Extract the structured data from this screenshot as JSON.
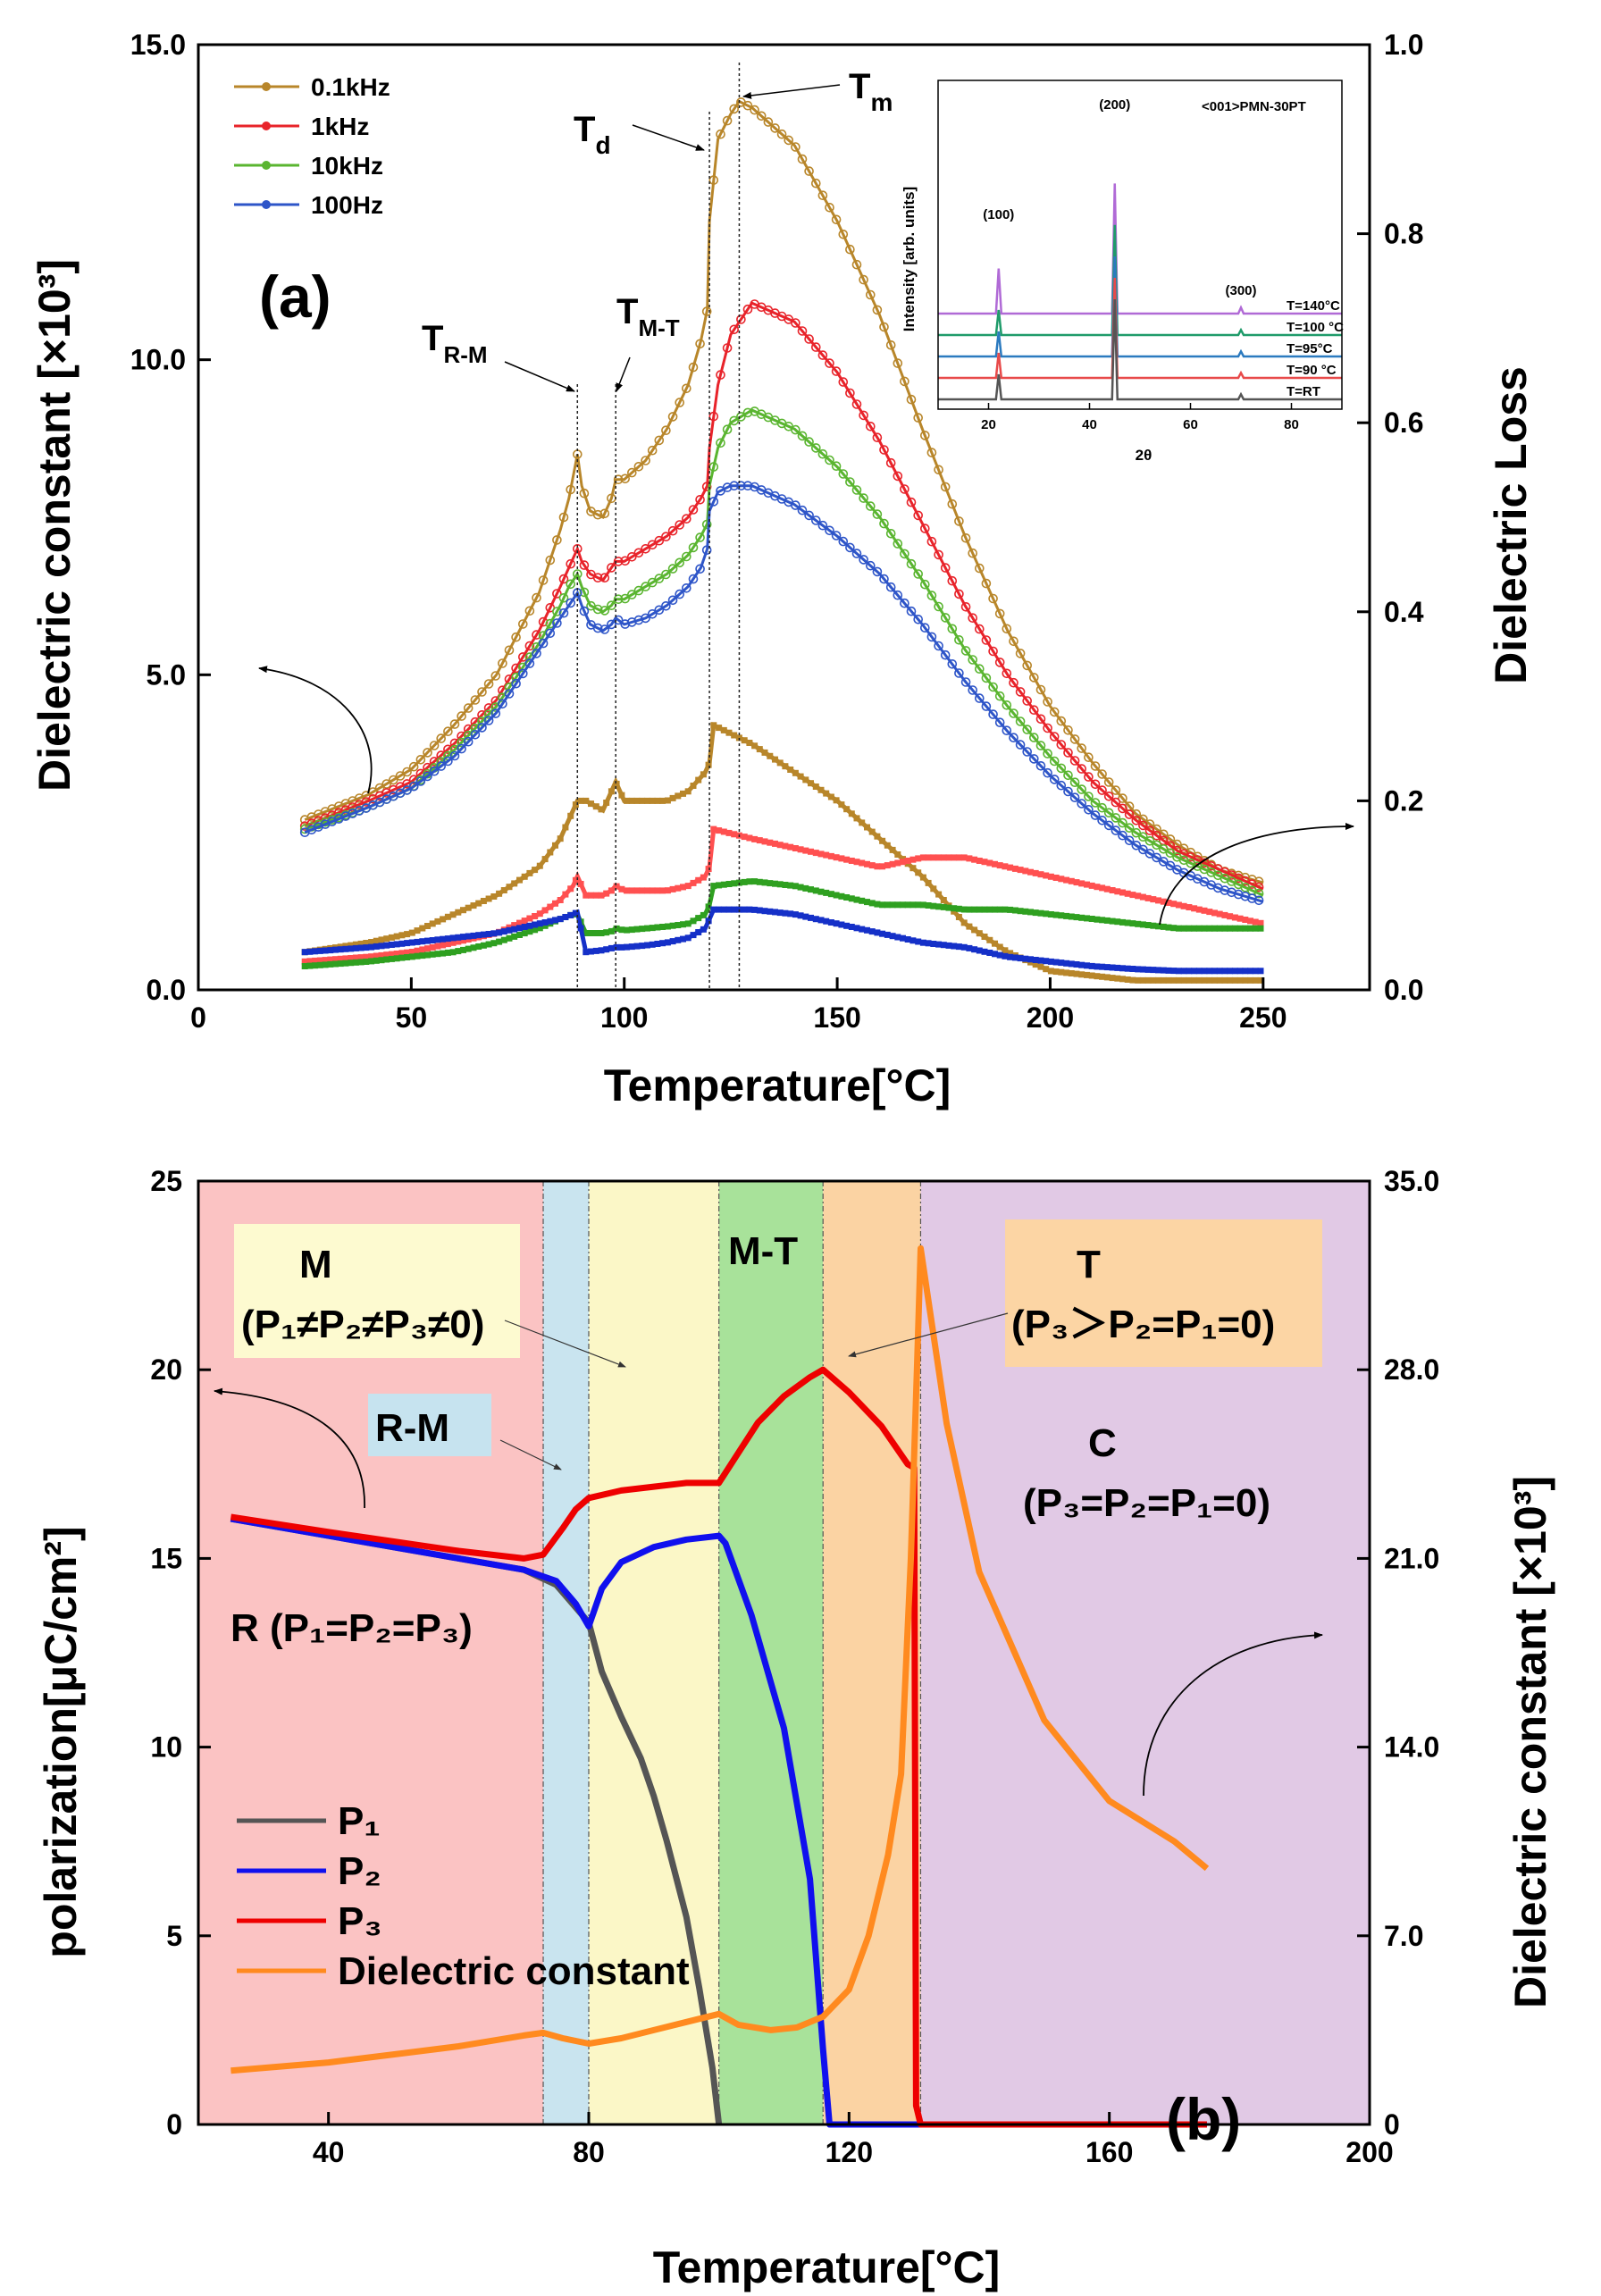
{
  "chart_data": [
    {
      "panel_label": "(a)",
      "type": "scatter",
      "xlabel": "Temperature[°C]",
      "ylabel": "Dielectric constant [×10³]",
      "y2label": "Dielectric Loss",
      "xlim": [
        0,
        275
      ],
      "ylim": [
        0,
        15
      ],
      "y2lim": [
        0,
        1
      ],
      "xticks": [
        "0",
        "50",
        "100",
        "150",
        "200",
        "250"
      ],
      "yticks": [
        "0.0",
        "5.0",
        "10.0",
        "15.0"
      ],
      "y2ticks": [
        "0.0",
        "0.2",
        "0.4",
        "0.6",
        "0.8",
        "1.0"
      ],
      "legend_position": "top-left",
      "annotations": {
        "Tm": {
          "main": "T",
          "sub": "m"
        },
        "Td": {
          "main": "T",
          "sub": "d"
        },
        "TRM": {
          "main": "T",
          "sub": "R-M"
        },
        "TMT": {
          "main": "T",
          "sub": "M-T"
        }
      },
      "transition_lines_x": [
        89,
        98,
        120,
        127
      ],
      "series": [
        {
          "name": "0.1kHz",
          "color": "#b8862a",
          "axis": "left",
          "x": [
            25,
            40,
            50,
            60,
            70,
            80,
            85,
            87,
            89,
            90,
            92,
            95,
            97,
            98,
            100,
            105,
            110,
            115,
            118,
            119.5,
            120,
            122,
            125,
            127,
            130,
            140,
            150,
            160,
            170,
            180,
            190,
            200,
            210,
            220,
            230,
            240,
            250
          ],
          "y": [
            2.7,
            3.1,
            3.5,
            4.2,
            5.0,
            6.3,
            7.3,
            7.8,
            8.5,
            8.0,
            7.6,
            7.5,
            7.8,
            8.1,
            8.1,
            8.4,
            8.9,
            9.6,
            10.3,
            10.8,
            12.2,
            13.5,
            13.9,
            14.1,
            14.0,
            13.4,
            12.2,
            10.7,
            8.9,
            7.2,
            5.7,
            4.5,
            3.6,
            2.8,
            2.3,
            1.9,
            1.7
          ]
        },
        {
          "name": "1kHz",
          "color": "#e8232a",
          "axis": "left",
          "x": [
            25,
            40,
            50,
            60,
            70,
            80,
            85,
            87,
            89,
            90,
            92,
            95,
            97,
            98,
            100,
            105,
            110,
            115,
            118,
            119.5,
            120,
            122,
            125,
            130,
            140,
            150,
            160,
            170,
            180,
            190,
            200,
            210,
            220,
            230,
            240,
            250
          ],
          "y": [
            2.6,
            3.0,
            3.3,
            3.9,
            4.6,
            5.7,
            6.4,
            6.7,
            7.0,
            6.8,
            6.6,
            6.5,
            6.7,
            6.8,
            6.8,
            7.0,
            7.2,
            7.5,
            7.8,
            8.0,
            8.6,
            9.6,
            10.4,
            10.9,
            10.6,
            9.8,
            8.7,
            7.4,
            6.1,
            5.0,
            4.1,
            3.3,
            2.7,
            2.2,
            1.9,
            1.6
          ]
        },
        {
          "name": "10kHz",
          "color": "#5ab530",
          "axis": "left",
          "x": [
            25,
            40,
            50,
            60,
            70,
            80,
            85,
            87,
            89,
            90,
            92,
            95,
            97,
            98,
            100,
            105,
            110,
            115,
            118,
            119.5,
            120,
            122,
            125,
            130,
            140,
            150,
            160,
            170,
            180,
            190,
            200,
            210,
            220,
            230,
            240,
            250
          ],
          "y": [
            2.55,
            2.9,
            3.2,
            3.8,
            4.5,
            5.5,
            6.1,
            6.4,
            6.6,
            6.4,
            6.1,
            6.0,
            6.1,
            6.2,
            6.2,
            6.4,
            6.6,
            6.9,
            7.2,
            7.4,
            8.0,
            8.6,
            9.0,
            9.2,
            8.9,
            8.3,
            7.5,
            6.5,
            5.4,
            4.5,
            3.7,
            3.0,
            2.5,
            2.1,
            1.8,
            1.5
          ]
        },
        {
          "name": "100Hz",
          "color": "#2e55c8",
          "axis": "left",
          "x": [
            25,
            40,
            50,
            60,
            70,
            80,
            85,
            87,
            89,
            90,
            92,
            95,
            97,
            98,
            100,
            105,
            110,
            115,
            118,
            119.5,
            120,
            122,
            125,
            130,
            140,
            150,
            160,
            170,
            180,
            190,
            200,
            210,
            220,
            230,
            240,
            250
          ],
          "y": [
            2.5,
            2.9,
            3.2,
            3.7,
            4.4,
            5.4,
            5.9,
            6.1,
            6.3,
            6.1,
            5.8,
            5.7,
            5.8,
            5.9,
            5.8,
            5.9,
            6.1,
            6.4,
            6.7,
            7.0,
            7.6,
            7.9,
            8.0,
            8.0,
            7.7,
            7.2,
            6.6,
            5.8,
            4.9,
            4.1,
            3.4,
            2.8,
            2.3,
            1.9,
            1.6,
            1.4
          ]
        },
        {
          "name": "0.1kHz loss",
          "color": "#b8862a",
          "axis": "right",
          "x": [
            25,
            40,
            50,
            60,
            70,
            80,
            85,
            88,
            89,
            91,
            95,
            97,
            98,
            100,
            105,
            110,
            115,
            119,
            120,
            121,
            130,
            140,
            150,
            160,
            170,
            180,
            190,
            200,
            210,
            220,
            230,
            240,
            250
          ],
          "y": [
            0.04,
            0.05,
            0.06,
            0.08,
            0.1,
            0.13,
            0.16,
            0.19,
            0.2,
            0.2,
            0.19,
            0.21,
            0.22,
            0.2,
            0.2,
            0.2,
            0.21,
            0.23,
            0.24,
            0.28,
            0.26,
            0.23,
            0.2,
            0.16,
            0.12,
            0.07,
            0.04,
            0.02,
            0.015,
            0.01,
            0.01,
            0.01,
            0.01
          ]
        },
        {
          "name": "1kHz loss",
          "color": "#ff5050",
          "axis": "right",
          "x": [
            25,
            40,
            50,
            60,
            70,
            80,
            85,
            88,
            89,
            91,
            95,
            97,
            98,
            100,
            105,
            110,
            115,
            119,
            120,
            121,
            130,
            140,
            150,
            160,
            170,
            180,
            190,
            200,
            210,
            220,
            230,
            240,
            250
          ],
          "y": [
            0.03,
            0.035,
            0.04,
            0.05,
            0.06,
            0.08,
            0.095,
            0.11,
            0.12,
            0.1,
            0.1,
            0.105,
            0.11,
            0.105,
            0.105,
            0.105,
            0.11,
            0.12,
            0.13,
            0.17,
            0.16,
            0.15,
            0.14,
            0.13,
            0.14,
            0.14,
            0.13,
            0.12,
            0.11,
            0.1,
            0.09,
            0.08,
            0.07
          ]
        },
        {
          "name": "10kHz loss",
          "color": "#2fa020",
          "axis": "right",
          "x": [
            25,
            40,
            50,
            60,
            70,
            80,
            85,
            88,
            89,
            91,
            95,
            97,
            98,
            100,
            105,
            110,
            115,
            119,
            120,
            121,
            130,
            140,
            150,
            160,
            170,
            180,
            190,
            200,
            210,
            220,
            230,
            240,
            250
          ],
          "y": [
            0.025,
            0.03,
            0.035,
            0.04,
            0.05,
            0.065,
            0.075,
            0.08,
            0.08,
            0.06,
            0.06,
            0.062,
            0.065,
            0.063,
            0.065,
            0.067,
            0.07,
            0.08,
            0.09,
            0.11,
            0.115,
            0.11,
            0.1,
            0.09,
            0.09,
            0.085,
            0.085,
            0.08,
            0.075,
            0.07,
            0.065,
            0.065,
            0.065
          ]
        },
        {
          "name": "100Hz loss",
          "color": "#1530c8",
          "axis": "right",
          "x": [
            25,
            40,
            50,
            60,
            70,
            80,
            85,
            88,
            89,
            91,
            95,
            97,
            98,
            100,
            105,
            110,
            115,
            119,
            120,
            121,
            130,
            140,
            150,
            160,
            170,
            180,
            190,
            200,
            210,
            220,
            230,
            240,
            250
          ],
          "y": [
            0.04,
            0.045,
            0.05,
            0.055,
            0.06,
            0.07,
            0.075,
            0.08,
            0.082,
            0.04,
            0.042,
            0.044,
            0.045,
            0.045,
            0.047,
            0.05,
            0.055,
            0.065,
            0.075,
            0.085,
            0.085,
            0.08,
            0.07,
            0.06,
            0.05,
            0.045,
            0.035,
            0.03,
            0.025,
            0.022,
            0.02,
            0.02,
            0.02
          ]
        }
      ],
      "inset": {
        "type": "line",
        "label": "<001>PMN-30PT",
        "xlabel": "2θ",
        "ylabel": "Intensity [arb. units]",
        "xlim": [
          10,
          90
        ],
        "xticks": [
          "20",
          "40",
          "60",
          "80"
        ],
        "peak_labels": [
          {
            "text": "(100)",
            "x": 22
          },
          {
            "text": "(200)",
            "x": 45
          },
          {
            "text": "(300)",
            "x": 70
          }
        ],
        "peaks_x": [
          22,
          45,
          70
        ],
        "series": [
          {
            "name": "T=140°C",
            "color": "#b06ad6",
            "offset": 4,
            "peak_heights": [
              0.9,
              2.6,
              0.12
            ]
          },
          {
            "name": "T=100 °C",
            "color": "#1f9b6a",
            "offset": 3,
            "peak_heights": [
              0.5,
              2.2,
              0.1
            ]
          },
          {
            "name": "T=95°C",
            "color": "#2b7abf",
            "offset": 2,
            "peak_heights": [
              0.5,
              2.0,
              0.1
            ]
          },
          {
            "name": "T=90 °C",
            "color": "#e84a4a",
            "offset": 1,
            "peak_heights": [
              0.5,
              2.0,
              0.1
            ]
          },
          {
            "name": "T=RT",
            "color": "#555555",
            "offset": 0,
            "peak_heights": [
              0.5,
              2.0,
              0.1
            ]
          }
        ]
      }
    },
    {
      "panel_label": "(b)",
      "type": "line",
      "xlabel": "Temperature[°C]",
      "ylabel": "polarization[μC/cm²]",
      "y2label": "Dielectric constant [×10³]",
      "xlim": [
        20,
        200
      ],
      "ylim": [
        0,
        25
      ],
      "y2lim": [
        0,
        35
      ],
      "xticks": [
        "40",
        "80",
        "120",
        "160",
        "200"
      ],
      "yticks": [
        "0",
        "5",
        "10",
        "15",
        "20",
        "25"
      ],
      "y2ticks": [
        "0",
        "7.0",
        "14.0",
        "21.0",
        "28.0",
        "35.0"
      ],
      "legend_position": "bottom-left",
      "regions": [
        {
          "name": "R",
          "x": [
            20,
            73
          ],
          "color": "#fbc3c3"
        },
        {
          "name": "R-M",
          "x": [
            73,
            80
          ],
          "color": "#c9e4ef"
        },
        {
          "name": "M",
          "x": [
            80,
            100
          ],
          "color": "#fbf7c7"
        },
        {
          "name": "M-T",
          "x": [
            100,
            116
          ],
          "color": "#a8e29a"
        },
        {
          "name": "T",
          "x": [
            116,
            131
          ],
          "color": "#fbd3a3"
        },
        {
          "name": "C",
          "x": [
            131,
            200
          ],
          "color": "#e1c9e5"
        }
      ],
      "region_labels": {
        "M": "M",
        "M_cond": "(P₁≠P₂≠P₃≠0)",
        "RM": "R-M",
        "MT": "M-T",
        "T": "T",
        "T_cond": "(P₃＞P₂=P₁=0)",
        "C": "C",
        "C_cond": "(P₃=P₂=P₁=0)",
        "R": "R (P₁=P₂=P₃)"
      },
      "series": [
        {
          "name": "P₁",
          "color": "#555555",
          "axis": "left",
          "x": [
            25,
            40,
            60,
            70,
            75,
            80,
            82,
            85,
            88,
            90,
            92,
            95,
            97,
            99,
            100
          ],
          "y": [
            16.05,
            15.6,
            15.0,
            14.7,
            14.3,
            13.3,
            12.0,
            10.8,
            9.7,
            8.7,
            7.5,
            5.5,
            3.6,
            1.5,
            0
          ]
        },
        {
          "name": "P₂",
          "color": "#1010ee",
          "axis": "left",
          "x": [
            25,
            40,
            60,
            70,
            75,
            78,
            80,
            82,
            85,
            90,
            95,
            100,
            101,
            105,
            110,
            114,
            116,
            117,
            175
          ],
          "y": [
            16.05,
            15.6,
            15.0,
            14.7,
            14.4,
            13.8,
            13.2,
            14.2,
            14.9,
            15.3,
            15.5,
            15.6,
            15.4,
            13.5,
            10.5,
            6.5,
            2.0,
            0,
            0
          ]
        },
        {
          "name": "P₃",
          "color": "#ee0000",
          "axis": "left",
          "x": [
            25,
            40,
            60,
            70,
            73,
            76,
            78,
            80,
            85,
            90,
            95,
            100,
            103,
            106,
            110,
            114,
            116,
            120,
            125,
            129,
            130,
            130.3,
            131,
            175
          ],
          "y": [
            16.1,
            15.7,
            15.2,
            15.0,
            15.1,
            15.8,
            16.3,
            16.6,
            16.8,
            16.9,
            17.0,
            17.0,
            17.8,
            18.6,
            19.3,
            19.8,
            20.0,
            19.4,
            18.5,
            17.5,
            17.4,
            0.5,
            0,
            0
          ]
        },
        {
          "name": "Dielectric constant",
          "color": "#ff8a1f",
          "axis": "right",
          "x": [
            25,
            40,
            50,
            60,
            70,
            73,
            76,
            80,
            85,
            90,
            95,
            100,
            103,
            108,
            112,
            116,
            120,
            123,
            126,
            128,
            129.5,
            130.5,
            131,
            135,
            140,
            150,
            160,
            170,
            175
          ],
          "y": [
            2.0,
            2.3,
            2.6,
            2.9,
            3.3,
            3.4,
            3.2,
            3.0,
            3.2,
            3.5,
            3.8,
            4.1,
            3.7,
            3.5,
            3.6,
            4.0,
            5.0,
            7.0,
            10.0,
            13.0,
            21.0,
            28.5,
            32.5,
            26.0,
            20.5,
            15.0,
            12.0,
            10.5,
            9.5
          ]
        }
      ]
    }
  ]
}
